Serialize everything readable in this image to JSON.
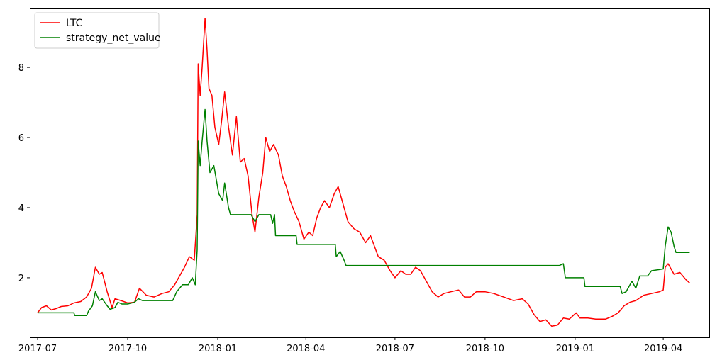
{
  "chart_data": {
    "type": "line",
    "title": "",
    "xlabel": "",
    "ylabel": "",
    "x_ticks": [
      "2017-07",
      "2017-10",
      "2018-01",
      "2018-04",
      "2018-07",
      "2018-10",
      "2019-01",
      "2019-04"
    ],
    "y_ticks": [
      2,
      4,
      6,
      8
    ],
    "xlim": [
      "2017-06-23",
      "2019-05-18"
    ],
    "ylim": [
      0.3,
      9.7
    ],
    "grid": false,
    "legend": "top-left",
    "series": [
      {
        "name": "LTC",
        "color": "#ff0000",
        "points": [
          [
            "2017-07-01",
            1.0
          ],
          [
            "2017-07-05",
            1.15
          ],
          [
            "2017-07-10",
            1.2
          ],
          [
            "2017-07-15",
            1.08
          ],
          [
            "2017-07-20",
            1.12
          ],
          [
            "2017-07-25",
            1.18
          ],
          [
            "2017-08-01",
            1.2
          ],
          [
            "2017-08-07",
            1.28
          ],
          [
            "2017-08-14",
            1.32
          ],
          [
            "2017-08-20",
            1.45
          ],
          [
            "2017-08-25",
            1.7
          ],
          [
            "2017-08-29",
            2.3
          ],
          [
            "2017-09-02",
            2.1
          ],
          [
            "2017-09-05",
            2.15
          ],
          [
            "2017-09-10",
            1.6
          ],
          [
            "2017-09-15",
            1.15
          ],
          [
            "2017-09-18",
            1.4
          ],
          [
            "2017-09-24",
            1.35
          ],
          [
            "2017-10-01",
            1.28
          ],
          [
            "2017-10-08",
            1.3
          ],
          [
            "2017-10-13",
            1.7
          ],
          [
            "2017-10-20",
            1.5
          ],
          [
            "2017-10-28",
            1.45
          ],
          [
            "2017-11-05",
            1.55
          ],
          [
            "2017-11-12",
            1.6
          ],
          [
            "2017-11-18",
            1.8
          ],
          [
            "2017-11-22",
            2.0
          ],
          [
            "2017-11-28",
            2.3
          ],
          [
            "2017-12-03",
            2.6
          ],
          [
            "2017-12-08",
            2.5
          ],
          [
            "2017-12-11",
            3.8
          ],
          [
            "2017-12-12",
            8.1
          ],
          [
            "2017-12-14",
            7.2
          ],
          [
            "2017-12-16",
            8.0
          ],
          [
            "2017-12-19",
            9.4
          ],
          [
            "2017-12-21",
            8.5
          ],
          [
            "2017-12-23",
            7.4
          ],
          [
            "2017-12-26",
            7.2
          ],
          [
            "2017-12-29",
            6.3
          ],
          [
            "2018-01-02",
            5.8
          ],
          [
            "2018-01-05",
            6.5
          ],
          [
            "2018-01-08",
            7.3
          ],
          [
            "2018-01-12",
            6.3
          ],
          [
            "2018-01-16",
            5.5
          ],
          [
            "2018-01-20",
            6.6
          ],
          [
            "2018-01-24",
            5.3
          ],
          [
            "2018-01-28",
            5.4
          ],
          [
            "2018-02-01",
            4.9
          ],
          [
            "2018-02-05",
            3.8
          ],
          [
            "2018-02-08",
            3.3
          ],
          [
            "2018-02-12",
            4.3
          ],
          [
            "2018-02-16",
            5.0
          ],
          [
            "2018-02-19",
            6.0
          ],
          [
            "2018-02-23",
            5.6
          ],
          [
            "2018-02-27",
            5.8
          ],
          [
            "2018-03-04",
            5.5
          ],
          [
            "2018-03-08",
            4.9
          ],
          [
            "2018-03-12",
            4.6
          ],
          [
            "2018-03-16",
            4.2
          ],
          [
            "2018-03-20",
            3.9
          ],
          [
            "2018-03-25",
            3.6
          ],
          [
            "2018-03-30",
            3.1
          ],
          [
            "2018-04-04",
            3.3
          ],
          [
            "2018-04-08",
            3.2
          ],
          [
            "2018-04-12",
            3.7
          ],
          [
            "2018-04-16",
            4.0
          ],
          [
            "2018-04-20",
            4.2
          ],
          [
            "2018-04-25",
            4.0
          ],
          [
            "2018-04-30",
            4.4
          ],
          [
            "2018-05-04",
            4.6
          ],
          [
            "2018-05-09",
            4.1
          ],
          [
            "2018-05-14",
            3.6
          ],
          [
            "2018-05-20",
            3.4
          ],
          [
            "2018-05-26",
            3.3
          ],
          [
            "2018-06-01",
            3.0
          ],
          [
            "2018-06-06",
            3.2
          ],
          [
            "2018-06-10",
            2.9
          ],
          [
            "2018-06-14",
            2.6
          ],
          [
            "2018-06-20",
            2.5
          ],
          [
            "2018-06-26",
            2.2
          ],
          [
            "2018-07-01",
            2.0
          ],
          [
            "2018-07-07",
            2.2
          ],
          [
            "2018-07-12",
            2.1
          ],
          [
            "2018-07-17",
            2.1
          ],
          [
            "2018-07-22",
            2.3
          ],
          [
            "2018-07-27",
            2.2
          ],
          [
            "2018-08-02",
            1.9
          ],
          [
            "2018-08-08",
            1.6
          ],
          [
            "2018-08-14",
            1.45
          ],
          [
            "2018-08-20",
            1.55
          ],
          [
            "2018-08-27",
            1.6
          ],
          [
            "2018-09-04",
            1.65
          ],
          [
            "2018-09-10",
            1.45
          ],
          [
            "2018-09-16",
            1.45
          ],
          [
            "2018-09-22",
            1.6
          ],
          [
            "2018-10-01",
            1.6
          ],
          [
            "2018-10-10",
            1.55
          ],
          [
            "2018-10-20",
            1.45
          ],
          [
            "2018-10-30",
            1.35
          ],
          [
            "2018-11-08",
            1.4
          ],
          [
            "2018-11-14",
            1.25
          ],
          [
            "2018-11-20",
            0.95
          ],
          [
            "2018-11-26",
            0.75
          ],
          [
            "2018-12-02",
            0.8
          ],
          [
            "2018-12-08",
            0.62
          ],
          [
            "2018-12-14",
            0.65
          ],
          [
            "2018-12-20",
            0.85
          ],
          [
            "2018-12-26",
            0.82
          ],
          [
            "2019-01-02",
            1.0
          ],
          [
            "2019-01-06",
            0.85
          ],
          [
            "2019-01-14",
            0.85
          ],
          [
            "2019-01-22",
            0.82
          ],
          [
            "2019-02-01",
            0.82
          ],
          [
            "2019-02-08",
            0.9
          ],
          [
            "2019-02-14",
            1.0
          ],
          [
            "2019-02-20",
            1.2
          ],
          [
            "2019-02-26",
            1.3
          ],
          [
            "2019-03-04",
            1.35
          ],
          [
            "2019-03-12",
            1.5
          ],
          [
            "2019-03-20",
            1.55
          ],
          [
            "2019-03-28",
            1.6
          ],
          [
            "2019-04-01",
            1.65
          ],
          [
            "2019-04-03",
            2.3
          ],
          [
            "2019-04-06",
            2.4
          ],
          [
            "2019-04-12",
            2.1
          ],
          [
            "2019-04-18",
            2.15
          ],
          [
            "2019-04-24",
            1.95
          ],
          [
            "2019-04-28",
            1.85
          ]
        ]
      },
      {
        "name": "strategy_net_value",
        "color": "#008000",
        "points": [
          [
            "2017-07-01",
            1.0
          ],
          [
            "2017-07-20",
            1.0
          ],
          [
            "2017-08-01",
            1.0
          ],
          [
            "2017-08-07",
            1.0
          ],
          [
            "2017-08-08",
            0.92
          ],
          [
            "2017-08-20",
            0.92
          ],
          [
            "2017-08-22",
            1.05
          ],
          [
            "2017-08-26",
            1.2
          ],
          [
            "2017-08-29",
            1.6
          ],
          [
            "2017-09-02",
            1.35
          ],
          [
            "2017-09-05",
            1.4
          ],
          [
            "2017-09-10",
            1.2
          ],
          [
            "2017-09-13",
            1.1
          ],
          [
            "2017-09-18",
            1.15
          ],
          [
            "2017-09-21",
            1.3
          ],
          [
            "2017-09-25",
            1.25
          ],
          [
            "2017-10-01",
            1.25
          ],
          [
            "2017-10-08",
            1.3
          ],
          [
            "2017-10-12",
            1.4
          ],
          [
            "2017-10-16",
            1.35
          ],
          [
            "2017-11-01",
            1.35
          ],
          [
            "2017-11-16",
            1.35
          ],
          [
            "2017-11-20",
            1.6
          ],
          [
            "2017-11-26",
            1.8
          ],
          [
            "2017-12-02",
            1.8
          ],
          [
            "2017-12-06",
            2.0
          ],
          [
            "2017-12-09",
            1.8
          ],
          [
            "2017-12-11",
            2.8
          ],
          [
            "2017-12-12",
            5.9
          ],
          [
            "2017-12-14",
            5.2
          ],
          [
            "2017-12-16",
            5.9
          ],
          [
            "2017-12-19",
            6.8
          ],
          [
            "2017-12-21",
            5.9
          ],
          [
            "2017-12-24",
            5.0
          ],
          [
            "2017-12-28",
            5.2
          ],
          [
            "2018-01-02",
            4.4
          ],
          [
            "2018-01-06",
            4.2
          ],
          [
            "2018-01-08",
            4.7
          ],
          [
            "2018-01-12",
            4.0
          ],
          [
            "2018-01-14",
            3.8
          ],
          [
            "2018-02-04",
            3.8
          ],
          [
            "2018-02-08",
            3.6
          ],
          [
            "2018-02-12",
            3.8
          ],
          [
            "2018-02-24",
            3.8
          ],
          [
            "2018-02-26",
            3.55
          ],
          [
            "2018-02-28",
            3.8
          ],
          [
            "2018-03-01",
            3.2
          ],
          [
            "2018-03-22",
            3.2
          ],
          [
            "2018-03-23",
            2.95
          ],
          [
            "2018-05-01",
            2.95
          ],
          [
            "2018-05-02",
            2.6
          ],
          [
            "2018-05-06",
            2.75
          ],
          [
            "2018-05-10",
            2.5
          ],
          [
            "2018-05-12",
            2.35
          ],
          [
            "2018-12-16",
            2.35
          ],
          [
            "2018-12-20",
            2.4
          ],
          [
            "2018-12-22",
            2.0
          ],
          [
            "2019-01-10",
            2.0
          ],
          [
            "2019-01-11",
            1.75
          ],
          [
            "2019-02-16",
            1.75
          ],
          [
            "2019-02-18",
            1.55
          ],
          [
            "2019-02-22",
            1.6
          ],
          [
            "2019-02-28",
            1.9
          ],
          [
            "2019-03-04",
            1.7
          ],
          [
            "2019-03-08",
            2.05
          ],
          [
            "2019-03-16",
            2.05
          ],
          [
            "2019-03-20",
            2.2
          ],
          [
            "2019-04-01",
            2.25
          ],
          [
            "2019-04-03",
            2.9
          ],
          [
            "2019-04-06",
            3.45
          ],
          [
            "2019-04-09",
            3.3
          ],
          [
            "2019-04-12",
            2.9
          ],
          [
            "2019-04-14",
            2.72
          ],
          [
            "2019-04-28",
            2.72
          ]
        ]
      }
    ]
  }
}
